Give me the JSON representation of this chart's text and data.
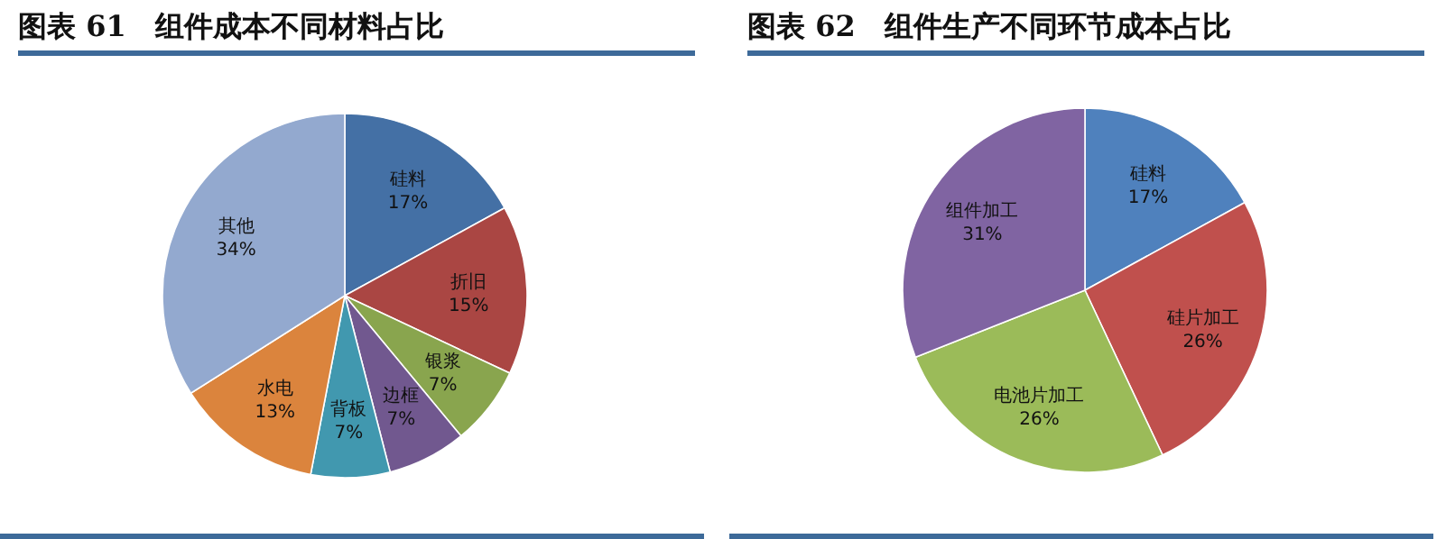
{
  "chart_data": [
    {
      "type": "pie",
      "title": "图表 61　组件成本不同材料占比",
      "categories": [
        "硅料",
        "折旧",
        "银浆",
        "边框",
        "背板",
        "水电",
        "其他"
      ],
      "values": [
        17,
        15,
        7,
        7,
        7,
        13,
        34
      ],
      "value_labels": [
        "17%",
        "15%",
        "7%",
        "7%",
        "7%",
        "13%",
        "34%"
      ],
      "colors": [
        "#4470a5",
        "#aa4643",
        "#89a54e",
        "#71588f",
        "#4198af",
        "#db843d",
        "#93a9cf"
      ]
    },
    {
      "type": "pie",
      "title": "图表 62　组件生产不同环节成本占比",
      "categories": [
        "硅料",
        "硅片加工",
        "电池片加工",
        "组件加工"
      ],
      "values": [
        17,
        26,
        26,
        31
      ],
      "value_labels": [
        "17%",
        "26%",
        "26%",
        "31%"
      ],
      "colors": [
        "#4f81bd",
        "#c0504d",
        "#9bbb59",
        "#8064a2"
      ]
    }
  ]
}
